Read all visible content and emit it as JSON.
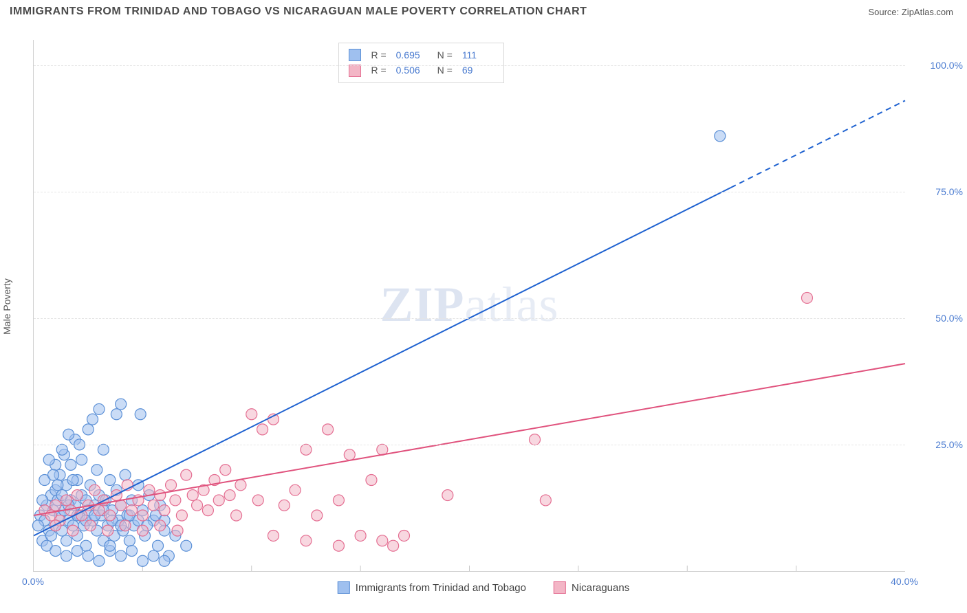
{
  "header": {
    "title": "IMMIGRANTS FROM TRINIDAD AND TOBAGO VS NICARAGUAN MALE POVERTY CORRELATION CHART",
    "source_label": "Source: ",
    "source_name": "ZipAtlas.com"
  },
  "chart": {
    "type": "scatter",
    "ylabel": "Male Poverty",
    "watermark": {
      "pre": "ZIP",
      "post": "atlas"
    },
    "xlim": [
      0,
      40
    ],
    "ylim": [
      0,
      105
    ],
    "xtick_labels": [
      {
        "v": 0,
        "label": "0.0%"
      },
      {
        "v": 40,
        "label": "40.0%"
      }
    ],
    "xtick_minor": [
      5,
      10,
      15,
      20,
      25,
      30,
      35
    ],
    "ytick_labels": [
      {
        "v": 25,
        "label": "25.0%"
      },
      {
        "v": 50,
        "label": "50.0%"
      },
      {
        "v": 75,
        "label": "75.0%"
      },
      {
        "v": 100,
        "label": "100.0%"
      }
    ],
    "grid_color": "#e6e6e6",
    "background_color": "#ffffff",
    "marker_radius": 8,
    "marker_opacity": 0.55,
    "line_width": 2,
    "series": [
      {
        "name": "Immigrants from Trinidad and Tobago",
        "color_fill": "#9fc0ef",
        "color_stroke": "#5a8fd6",
        "line_color": "#1f62d0",
        "r": 0.695,
        "n": 111,
        "regression": {
          "x0": 0,
          "y0": 7,
          "x1": 40,
          "y1": 93,
          "solid_until_x": 32
        },
        "points": [
          [
            0.3,
            11
          ],
          [
            0.5,
            10
          ],
          [
            0.6,
            13
          ],
          [
            0.7,
            8
          ],
          [
            0.8,
            15
          ],
          [
            0.9,
            12
          ],
          [
            1.0,
            16
          ],
          [
            1.0,
            9
          ],
          [
            1.1,
            14
          ],
          [
            1.2,
            19
          ],
          [
            1.2,
            11
          ],
          [
            1.3,
            8
          ],
          [
            1.4,
            23
          ],
          [
            1.4,
            12
          ],
          [
            1.5,
            17
          ],
          [
            1.5,
            6
          ],
          [
            1.6,
            10
          ],
          [
            1.7,
            14
          ],
          [
            1.7,
            21
          ],
          [
            1.8,
            9
          ],
          [
            1.9,
            13
          ],
          [
            1.9,
            26
          ],
          [
            2.0,
            7
          ],
          [
            2.0,
            18
          ],
          [
            2.1,
            11
          ],
          [
            2.2,
            15
          ],
          [
            2.2,
            22
          ],
          [
            2.3,
            9
          ],
          [
            2.4,
            14
          ],
          [
            2.4,
            5
          ],
          [
            2.5,
            28
          ],
          [
            2.5,
            12
          ],
          [
            2.6,
            17
          ],
          [
            2.7,
            10
          ],
          [
            2.7,
            30
          ],
          [
            2.8,
            13
          ],
          [
            2.9,
            8
          ],
          [
            2.9,
            20
          ],
          [
            3.0,
            15
          ],
          [
            3.0,
            32
          ],
          [
            3.1,
            11
          ],
          [
            3.2,
            6
          ],
          [
            3.2,
            24
          ],
          [
            3.3,
            14
          ],
          [
            3.4,
            9
          ],
          [
            3.5,
            18
          ],
          [
            3.5,
            4
          ],
          [
            3.6,
            12
          ],
          [
            3.7,
            7
          ],
          [
            3.8,
            31
          ],
          [
            3.8,
            16
          ],
          [
            3.9,
            10
          ],
          [
            4.0,
            13
          ],
          [
            4.0,
            33
          ],
          [
            4.1,
            8
          ],
          [
            4.2,
            19
          ],
          [
            4.3,
            11
          ],
          [
            4.4,
            6
          ],
          [
            4.5,
            14
          ],
          [
            4.6,
            9
          ],
          [
            4.8,
            17
          ],
          [
            4.9,
            31
          ],
          [
            5.0,
            12
          ],
          [
            5.1,
            7
          ],
          [
            5.3,
            15
          ],
          [
            5.5,
            10
          ],
          [
            5.7,
            5
          ],
          [
            5.8,
            13
          ],
          [
            6.0,
            8
          ],
          [
            6.2,
            3
          ],
          [
            1.0,
            21
          ],
          [
            1.3,
            24
          ],
          [
            1.6,
            27
          ],
          [
            1.8,
            18
          ],
          [
            2.1,
            25
          ],
          [
            0.4,
            6
          ],
          [
            0.6,
            5
          ],
          [
            0.8,
            7
          ],
          [
            1.0,
            4
          ],
          [
            1.5,
            3
          ],
          [
            2.0,
            4
          ],
          [
            2.5,
            3
          ],
          [
            3.0,
            2
          ],
          [
            3.5,
            5
          ],
          [
            4.0,
            3
          ],
          [
            4.5,
            4
          ],
          [
            5.0,
            2
          ],
          [
            5.5,
            3
          ],
          [
            6.0,
            2
          ],
          [
            0.2,
            9
          ],
          [
            0.4,
            14
          ],
          [
            0.5,
            18
          ],
          [
            0.7,
            22
          ],
          [
            0.9,
            19
          ],
          [
            1.1,
            17
          ],
          [
            1.3,
            15
          ],
          [
            1.6,
            13
          ],
          [
            2.0,
            11
          ],
          [
            2.4,
            10
          ],
          [
            2.8,
            11
          ],
          [
            3.2,
            12
          ],
          [
            3.6,
            10
          ],
          [
            4.0,
            9
          ],
          [
            4.4,
            11
          ],
          [
            4.8,
            10
          ],
          [
            5.2,
            9
          ],
          [
            5.6,
            11
          ],
          [
            6.0,
            10
          ],
          [
            6.5,
            7
          ],
          [
            7.0,
            5
          ],
          [
            31.5,
            86
          ]
        ]
      },
      {
        "name": "Nicaraguans",
        "color_fill": "#f3b6c6",
        "color_stroke": "#e46d91",
        "line_color": "#e0527d",
        "r": 0.506,
        "n": 69,
        "regression": {
          "x0": 0,
          "y0": 11,
          "x1": 40,
          "y1": 41,
          "solid_until_x": 40
        },
        "points": [
          [
            0.5,
            12
          ],
          [
            0.8,
            11
          ],
          [
            1.0,
            13
          ],
          [
            1.2,
            10
          ],
          [
            1.5,
            14
          ],
          [
            1.7,
            12
          ],
          [
            2.0,
            15
          ],
          [
            2.2,
            11
          ],
          [
            2.5,
            13
          ],
          [
            2.8,
            16
          ],
          [
            3.0,
            12
          ],
          [
            3.2,
            14
          ],
          [
            3.5,
            11
          ],
          [
            3.8,
            15
          ],
          [
            4.0,
            13
          ],
          [
            4.3,
            17
          ],
          [
            4.5,
            12
          ],
          [
            4.8,
            14
          ],
          [
            5.0,
            11
          ],
          [
            5.3,
            16
          ],
          [
            5.5,
            13
          ],
          [
            5.8,
            15
          ],
          [
            6.0,
            12
          ],
          [
            6.3,
            17
          ],
          [
            6.5,
            14
          ],
          [
            6.8,
            11
          ],
          [
            7.0,
            19
          ],
          [
            7.3,
            15
          ],
          [
            7.5,
            13
          ],
          [
            7.8,
            16
          ],
          [
            8.0,
            12
          ],
          [
            8.3,
            18
          ],
          [
            8.5,
            14
          ],
          [
            8.8,
            20
          ],
          [
            9.0,
            15
          ],
          [
            9.3,
            11
          ],
          [
            9.5,
            17
          ],
          [
            10.0,
            31
          ],
          [
            10.3,
            14
          ],
          [
            10.5,
            28
          ],
          [
            11.0,
            7
          ],
          [
            11.0,
            30
          ],
          [
            11.5,
            13
          ],
          [
            12.0,
            16
          ],
          [
            12.5,
            24
          ],
          [
            12.5,
            6
          ],
          [
            13.0,
            11
          ],
          [
            13.5,
            28
          ],
          [
            14.0,
            14
          ],
          [
            14.0,
            5
          ],
          [
            14.5,
            23
          ],
          [
            15.0,
            7
          ],
          [
            15.5,
            18
          ],
          [
            16.0,
            6
          ],
          [
            16.0,
            24
          ],
          [
            16.5,
            5
          ],
          [
            17.0,
            7
          ],
          [
            19.0,
            15
          ],
          [
            23.0,
            26
          ],
          [
            23.5,
            14
          ],
          [
            1.0,
            9
          ],
          [
            1.8,
            8
          ],
          [
            2.6,
            9
          ],
          [
            3.4,
            8
          ],
          [
            4.2,
            9
          ],
          [
            5.0,
            8
          ],
          [
            5.8,
            9
          ],
          [
            6.6,
            8
          ],
          [
            35.5,
            54
          ]
        ]
      }
    ],
    "legend_bottom": [
      {
        "label": "Immigrants from Trinidad and Tobago",
        "fill": "#9fc0ef",
        "stroke": "#5a8fd6"
      },
      {
        "label": "Nicaraguans",
        "fill": "#f3b6c6",
        "stroke": "#e46d91"
      }
    ]
  }
}
